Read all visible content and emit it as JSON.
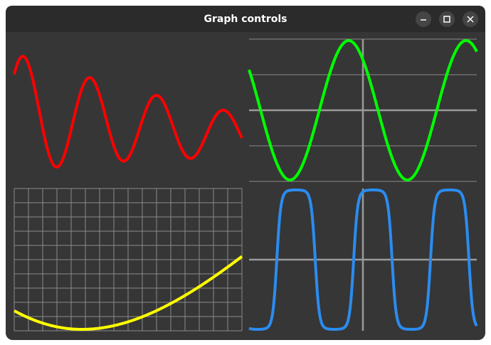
{
  "window": {
    "title": "Graph controls"
  }
}
